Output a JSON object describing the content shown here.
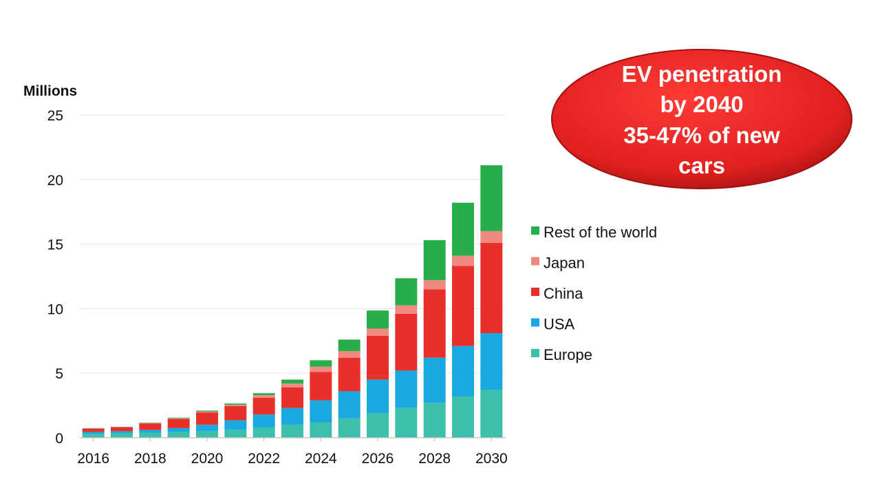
{
  "chart_data": {
    "type": "bar",
    "stacked": true,
    "ylabel": "Millions",
    "ylim": [
      0,
      25
    ],
    "yticks": [
      0,
      5,
      10,
      15,
      20,
      25
    ],
    "categories": [
      "2016",
      "2017",
      "2018",
      "2019",
      "2020",
      "2021",
      "2022",
      "2023",
      "2024",
      "2025",
      "2026",
      "2027",
      "2028",
      "2029",
      "2030"
    ],
    "xtick_labels": [
      "2016",
      "2018",
      "2020",
      "2022",
      "2024",
      "2026",
      "2028",
      "2030"
    ],
    "grid": true,
    "legend_position": "right",
    "series": [
      {
        "name": "Europe",
        "color": "#3dbfaa",
        "values": [
          0.3,
          0.35,
          0.4,
          0.45,
          0.5,
          0.6,
          0.8,
          1.0,
          1.2,
          1.5,
          1.9,
          2.3,
          2.7,
          3.2,
          3.7
        ]
      },
      {
        "name": "USA",
        "color": "#19a8e0",
        "values": [
          0.15,
          0.15,
          0.2,
          0.3,
          0.5,
          0.75,
          1.0,
          1.3,
          1.7,
          2.1,
          2.6,
          2.9,
          3.5,
          3.9,
          4.4
        ]
      },
      {
        "name": "China",
        "color": "#e8302a",
        "values": [
          0.25,
          0.3,
          0.5,
          0.7,
          0.95,
          1.1,
          1.3,
          1.6,
          2.2,
          2.6,
          3.4,
          4.4,
          5.3,
          6.2,
          7.0
        ]
      },
      {
        "name": "Japan",
        "color": "#f08a80",
        "values": [
          0.03,
          0.03,
          0.04,
          0.05,
          0.08,
          0.1,
          0.2,
          0.3,
          0.4,
          0.5,
          0.55,
          0.65,
          0.7,
          0.8,
          0.9
        ]
      },
      {
        "name": "Rest of the world",
        "color": "#27ad4a",
        "values": [
          0.02,
          0.02,
          0.03,
          0.05,
          0.07,
          0.1,
          0.15,
          0.3,
          0.5,
          0.9,
          1.4,
          2.1,
          3.1,
          4.1,
          5.1
        ]
      }
    ],
    "legend_order": [
      "Rest of the world",
      "Japan",
      "China",
      "USA",
      "Europe"
    ]
  },
  "callout": {
    "lines": [
      "EV penetration",
      "by 2040",
      "35-47% of new",
      "cars"
    ],
    "fill_color": "#e8232a",
    "text_color": "#ffffff"
  }
}
